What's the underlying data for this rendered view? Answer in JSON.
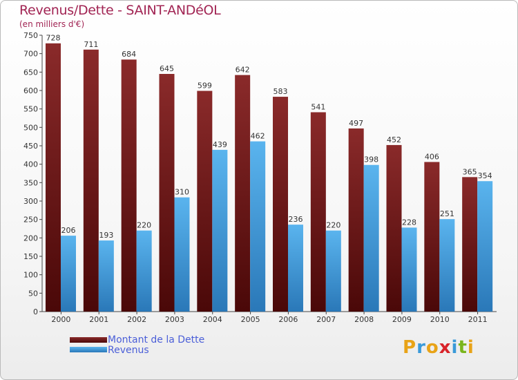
{
  "chart_data": {
    "type": "bar",
    "title": "Revenus/Dette - SAINT-ANDéOL",
    "subtitle": "(en milliers d'€)",
    "categories": [
      "2000",
      "2001",
      "2002",
      "2003",
      "2004",
      "2005",
      "2006",
      "2007",
      "2008",
      "2009",
      "2010",
      "2011"
    ],
    "series": [
      {
        "name": "Montant de la Dette",
        "values": [
          728,
          711,
          684,
          645,
          599,
          642,
          583,
          541,
          497,
          452,
          406,
          365
        ],
        "color": "#7a1a1a"
      },
      {
        "name": "Revenus",
        "values": [
          206,
          193,
          220,
          310,
          439,
          462,
          236,
          220,
          398,
          228,
          251,
          354
        ],
        "color": "#3a9ad9"
      }
    ],
    "ylim": [
      0,
      750
    ],
    "yticks": [
      0,
      50,
      100,
      150,
      200,
      250,
      300,
      350,
      400,
      450,
      500,
      550,
      600,
      650,
      700,
      750
    ],
    "grid": false,
    "legend": "bottom-left"
  },
  "legend": {
    "debt_label": "Montant de la Dette",
    "revenue_label": "Revenus"
  },
  "logo": {
    "letters": [
      "P",
      "r",
      "o",
      "x",
      "i",
      "t",
      "i"
    ],
    "colors": [
      "#e8a317",
      "#3a9ad9",
      "#e8a317",
      "#d8232a",
      "#3a9ad9",
      "#7ab51d",
      "#e8a317"
    ]
  }
}
